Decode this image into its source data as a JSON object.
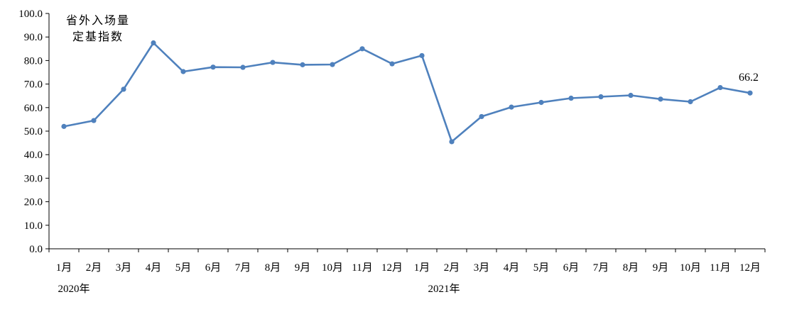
{
  "chart_data": {
    "type": "line",
    "title": "省外入场量\n定基指数",
    "title_lines": [
      "省外入场量",
      "定基指数"
    ],
    "ylim": [
      0,
      100
    ],
    "yticks": [
      "0.0",
      "10.0",
      "20.0",
      "30.0",
      "40.0",
      "50.0",
      "60.0",
      "70.0",
      "80.0",
      "90.0",
      "100.0"
    ],
    "categories": [
      "1月",
      "2月",
      "3月",
      "4月",
      "5月",
      "6月",
      "7月",
      "8月",
      "9月",
      "10月",
      "11月",
      "12月",
      "1月",
      "2月",
      "3月",
      "4月",
      "5月",
      "6月",
      "7月",
      "8月",
      "9月",
      "10月",
      "11月",
      "12月"
    ],
    "year_labels": [
      {
        "label": "2020年",
        "start_index": 0
      },
      {
        "label": "2021年",
        "start_index": 12
      }
    ],
    "series": [
      {
        "values": [
          52.0,
          54.5,
          67.8,
          87.5,
          75.3,
          77.2,
          77.1,
          79.2,
          78.2,
          78.3,
          85.0,
          78.6,
          82.1,
          45.5,
          56.2,
          60.2,
          62.2,
          64.0,
          64.6,
          65.2,
          63.6,
          62.5,
          68.5,
          66.2
        ]
      }
    ],
    "annotations": [
      {
        "text": "66.2",
        "index": 23
      }
    ],
    "line_color": "#4f81bd",
    "grid": false
  }
}
